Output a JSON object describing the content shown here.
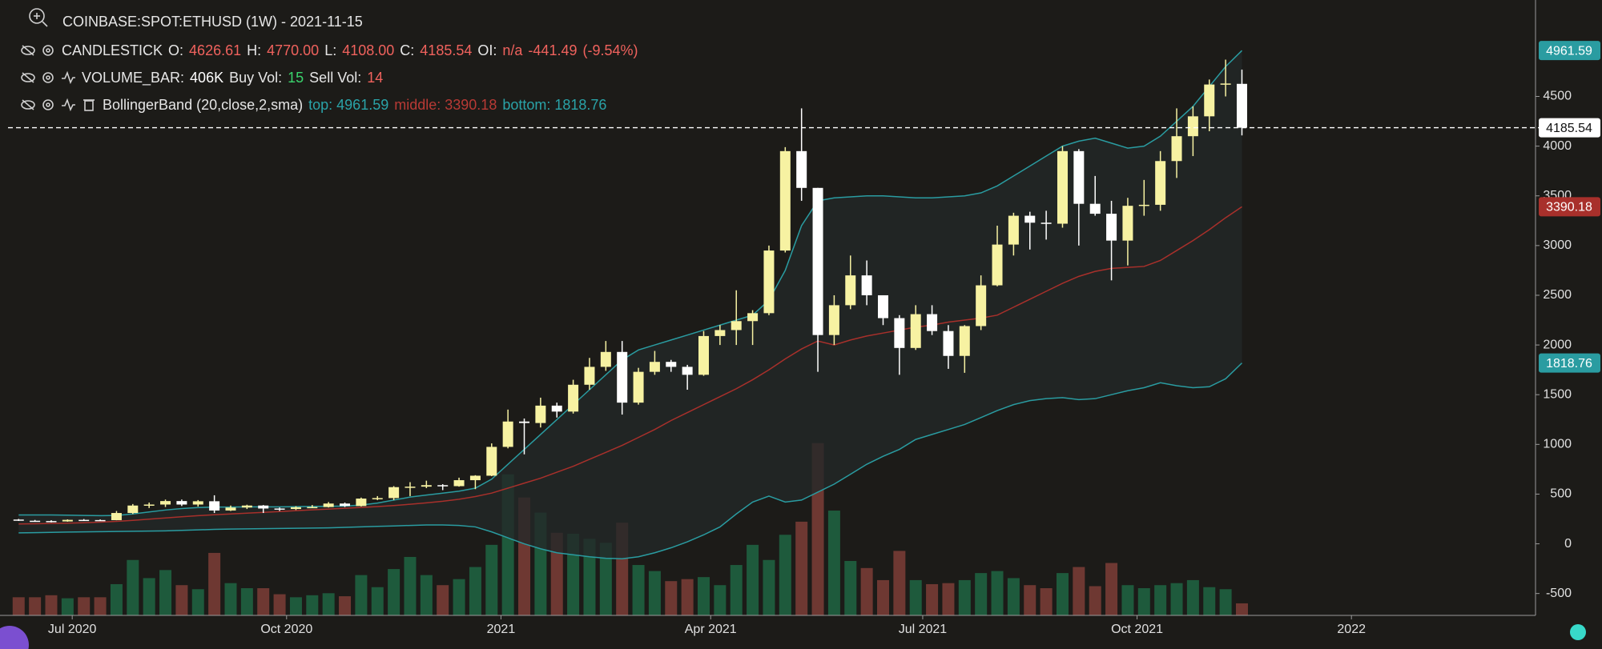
{
  "chart_data": {
    "type": "candlestick",
    "title": "COINBASE:SPOT:ETHUSD (1W) - 2021-11-15",
    "indicators": [
      {
        "parts": [
          {
            "text": "CANDLESTICK",
            "color": "#e6e6e6"
          },
          {
            "text": "O:",
            "color": "#e6e6e6"
          },
          {
            "text": "4626.61",
            "color": "#f0625d"
          },
          {
            "text": "H:",
            "color": "#e6e6e6"
          },
          {
            "text": "4770.00",
            "color": "#f0625d"
          },
          {
            "text": "L:",
            "color": "#e6e6e6"
          },
          {
            "text": "4108.00",
            "color": "#f0625d"
          },
          {
            "text": "C:",
            "color": "#e6e6e6"
          },
          {
            "text": "4185.54",
            "color": "#f0625d"
          },
          {
            "text": "OI:",
            "color": "#e6e6e6"
          },
          {
            "text": "n/a",
            "color": "#f0625d"
          },
          {
            "text": "-441.49",
            "color": "#f0625d"
          },
          {
            "text": "(-9.54%)",
            "color": "#f0625d"
          }
        ]
      },
      {
        "parts": [
          {
            "text": "VOLUME_BAR:",
            "color": "#e6e6e6"
          },
          {
            "text": "406K",
            "color": "#ffffff"
          },
          {
            "text": "Buy Vol:",
            "color": "#e6e6e6"
          },
          {
            "text": "15",
            "color": "#3ad36c"
          },
          {
            "text": "Sell Vol:",
            "color": "#e6e6e6"
          },
          {
            "text": "14",
            "color": "#f0625d"
          }
        ]
      },
      {
        "parts": [
          {
            "text": "BollingerBand (20,close,2,sma)",
            "color": "#e6e6e6"
          },
          {
            "text": "top: 4961.59",
            "color": "#2aa3a8"
          },
          {
            "text": "middle: 3390.18",
            "color": "#b83a35"
          },
          {
            "text": "bottom: 1818.76",
            "color": "#2aa3a8"
          }
        ]
      }
    ],
    "x": [
      "2020-06-08",
      "2020-06-15",
      "2020-06-22",
      "2020-06-29",
      "2020-07-06",
      "2020-07-13",
      "2020-07-20",
      "2020-07-27",
      "2020-08-03",
      "2020-08-10",
      "2020-08-17",
      "2020-08-24",
      "2020-08-31",
      "2020-09-07",
      "2020-09-14",
      "2020-09-21",
      "2020-09-28",
      "2020-10-05",
      "2020-10-12",
      "2020-10-19",
      "2020-10-26",
      "2020-11-02",
      "2020-11-09",
      "2020-11-16",
      "2020-11-23",
      "2020-11-30",
      "2020-12-07",
      "2020-12-14",
      "2020-12-21",
      "2020-12-28",
      "2021-01-04",
      "2021-01-11",
      "2021-01-18",
      "2021-01-25",
      "2021-02-01",
      "2021-02-08",
      "2021-02-15",
      "2021-02-22",
      "2021-03-01",
      "2021-03-08",
      "2021-03-15",
      "2021-03-22",
      "2021-03-29",
      "2021-04-05",
      "2021-04-12",
      "2021-04-19",
      "2021-04-26",
      "2021-05-03",
      "2021-05-10",
      "2021-05-17",
      "2021-05-24",
      "2021-05-31",
      "2021-06-07",
      "2021-06-14",
      "2021-06-21",
      "2021-06-28",
      "2021-07-05",
      "2021-07-12",
      "2021-07-19",
      "2021-07-26",
      "2021-08-02",
      "2021-08-09",
      "2021-08-16",
      "2021-08-23",
      "2021-08-30",
      "2021-09-06",
      "2021-09-13",
      "2021-09-20",
      "2021-09-27",
      "2021-10-04",
      "2021-10-11",
      "2021-10-18",
      "2021-10-25",
      "2021-11-01",
      "2021-11-08",
      "2021-11-15"
    ],
    "open": [
      244,
      232,
      229,
      225,
      241,
      239,
      238,
      310,
      385,
      395,
      430,
      395,
      428,
      335,
      365,
      385,
      355,
      350,
      368,
      370,
      405,
      380,
      455,
      460,
      570,
      575,
      590,
      580,
      640,
      685,
      975,
      1230,
      1215,
      1390,
      1330,
      1600,
      1780,
      1930,
      1420,
      1730,
      1830,
      1780,
      1700,
      2090,
      2150,
      2240,
      2320,
      2950,
      3950,
      3580,
      2100,
      2400,
      2700,
      2500,
      2270,
      1970,
      2310,
      2140,
      1890,
      2190,
      2600,
      3010,
      3300,
      3230,
      3220,
      3950,
      3420,
      3320,
      3050,
      3400,
      3410,
      3850,
      4100,
      4300,
      4620,
      4626.61
    ],
    "high": [
      250,
      240,
      237,
      246,
      249,
      245,
      330,
      400,
      415,
      445,
      445,
      440,
      488,
      385,
      393,
      390,
      365,
      378,
      390,
      420,
      415,
      465,
      480,
      580,
      620,
      635,
      600,
      665,
      690,
      1010,
      1350,
      1260,
      1470,
      1420,
      1650,
      1870,
      2040,
      2040,
      1770,
      1940,
      1850,
      1800,
      2140,
      2200,
      2550,
      2350,
      3000,
      3990,
      4380,
      3580,
      2500,
      2900,
      2850,
      2500,
      2300,
      2400,
      2400,
      2200,
      2200,
      2700,
      3200,
      3330,
      3340,
      3350,
      4000,
      3970,
      3700,
      3450,
      3480,
      3660,
      3950,
      4380,
      4400,
      4670,
      4870,
      4770
    ],
    "low": [
      230,
      222,
      215,
      222,
      230,
      230,
      237,
      300,
      360,
      370,
      380,
      375,
      310,
      330,
      350,
      310,
      330,
      340,
      360,
      365,
      370,
      375,
      440,
      440,
      480,
      560,
      540,
      575,
      550,
      680,
      960,
      900,
      1170,
      1270,
      1310,
      1550,
      1740,
      1300,
      1400,
      1700,
      1730,
      1550,
      1690,
      2000,
      2000,
      2000,
      2300,
      2930,
      3450,
      1730,
      2000,
      2360,
      2400,
      2200,
      1700,
      1950,
      2100,
      1760,
      1720,
      2150,
      2590,
      2900,
      2960,
      3060,
      3180,
      3000,
      3300,
      2650,
      2800,
      3300,
      3350,
      3680,
      3900,
      4150,
      4500,
      4108
    ],
    "close": [
      232,
      229,
      225,
      241,
      239,
      238,
      310,
      385,
      395,
      430,
      395,
      428,
      335,
      365,
      385,
      355,
      350,
      368,
      370,
      405,
      380,
      455,
      460,
      570,
      575,
      590,
      580,
      640,
      685,
      975,
      1230,
      1215,
      1390,
      1330,
      1600,
      1780,
      1930,
      1420,
      1730,
      1830,
      1780,
      1700,
      2090,
      2150,
      2240,
      2320,
      2950,
      3950,
      3580,
      2100,
      2400,
      2700,
      2500,
      2270,
      1970,
      2310,
      2140,
      1890,
      2190,
      2600,
      3010,
      3300,
      3230,
      3220,
      3950,
      3420,
      3320,
      3050,
      3400,
      3410,
      3850,
      4100,
      4300,
      4620,
      4630,
      4185.54
    ],
    "volume": [
      612,
      612,
      680,
      578,
      612,
      612,
      1054,
      1870,
      1258,
      1530,
      1020,
      884,
      2108,
      1088,
      918,
      918,
      714,
      612,
      680,
      748,
      646,
      1360,
      952,
      1564,
      1972,
      1360,
      1020,
      1224,
      1632,
      2380,
      4760,
      3978,
      3468,
      2788,
      2754,
      2584,
      2448,
      3128,
      1700,
      1496,
      1156,
      1224,
      1292,
      1020,
      1700,
      2380,
      1870,
      2720,
      3162,
      5814,
      3536,
      1836,
      1598,
      1190,
      2176,
      1190,
      1054,
      1088,
      1190,
      1428,
      1496,
      1258,
      1020,
      918,
      1428,
      1632,
      986,
      1768,
      1020,
      918,
      1020,
      1088,
      1190,
      952,
      884,
      406
    ],
    "up_color": "#f7f2a2",
    "down_color": "#ffffff",
    "volume_up_color": "#1e5a3c",
    "volume_down_color": "#6e3832",
    "bollinger": {
      "top": [
        290,
        290,
        290,
        288,
        285,
        283,
        285,
        300,
        320,
        340,
        355,
        365,
        370,
        370,
        372,
        372,
        372,
        374,
        376,
        378,
        380,
        390,
        410,
        440,
        470,
        490,
        510,
        530,
        560,
        650,
        800,
        950,
        1100,
        1250,
        1400,
        1550,
        1700,
        1850,
        1950,
        2000,
        2050,
        2100,
        2150,
        2200,
        2250,
        2300,
        2450,
        2750,
        3200,
        3450,
        3480,
        3490,
        3500,
        3500,
        3490,
        3480,
        3480,
        3490,
        3500,
        3530,
        3600,
        3700,
        3800,
        3900,
        4000,
        4050,
        4080,
        4030,
        3980,
        4000,
        4100,
        4250,
        4400,
        4600,
        4800,
        4961.59
      ],
      "middle": [
        200,
        202,
        205,
        208,
        212,
        218,
        226,
        236,
        248,
        260,
        272,
        283,
        292,
        300,
        308,
        316,
        324,
        333,
        342,
        350,
        358,
        366,
        375,
        385,
        398,
        412,
        428,
        448,
        475,
        510,
        560,
        610,
        660,
        720,
        780,
        850,
        920,
        990,
        1070,
        1150,
        1240,
        1320,
        1400,
        1480,
        1560,
        1650,
        1750,
        1860,
        1960,
        2040,
        2000,
        2050,
        2090,
        2120,
        2150,
        2180,
        2200,
        2230,
        2250,
        2270,
        2300,
        2380,
        2460,
        2540,
        2620,
        2690,
        2740,
        2770,
        2780,
        2790,
        2850,
        2950,
        3050,
        3160,
        3280,
        3390.18
      ],
      "bottom": [
        110,
        112,
        115,
        118,
        120,
        122,
        124,
        126,
        128,
        130,
        135,
        140,
        145,
        148,
        150,
        152,
        154,
        156,
        158,
        160,
        165,
        170,
        175,
        180,
        185,
        190,
        190,
        185,
        170,
        120,
        60,
        0,
        -50,
        -90,
        -110,
        -130,
        -145,
        -150,
        -130,
        -90,
        -40,
        20,
        90,
        170,
        300,
        420,
        480,
        420,
        440,
        520,
        600,
        700,
        800,
        880,
        950,
        1050,
        1100,
        1150,
        1200,
        1270,
        1340,
        1400,
        1440,
        1460,
        1470,
        1450,
        1460,
        1500,
        1540,
        1570,
        1620,
        1590,
        1570,
        1580,
        1660,
        1818.76
      ],
      "band_color": "#2a9ca1",
      "middle_color": "#a8302b",
      "fill_color": "#232828"
    },
    "price_line": true,
    "xlim": [
      "2020-05-31",
      "2022-03-21"
    ],
    "xticks": [
      {
        "value": "2020-07-01",
        "label": "Jul 2020"
      },
      {
        "value": "2020-10-01",
        "label": "Oct 2020"
      },
      {
        "value": "2021-01-01",
        "label": "2021"
      },
      {
        "value": "2021-04-01",
        "label": "Apr 2021"
      },
      {
        "value": "2021-07-01",
        "label": "Jul 2021"
      },
      {
        "value": "2021-10-01",
        "label": "Oct 2021"
      },
      {
        "value": "2022-01-01",
        "label": "2022"
      }
    ],
    "ylim": [
      -720,
      5470
    ],
    "yticks": [
      -500,
      0,
      500,
      1000,
      1500,
      2000,
      2500,
      3000,
      3500,
      4000,
      4500
    ]
  }
}
